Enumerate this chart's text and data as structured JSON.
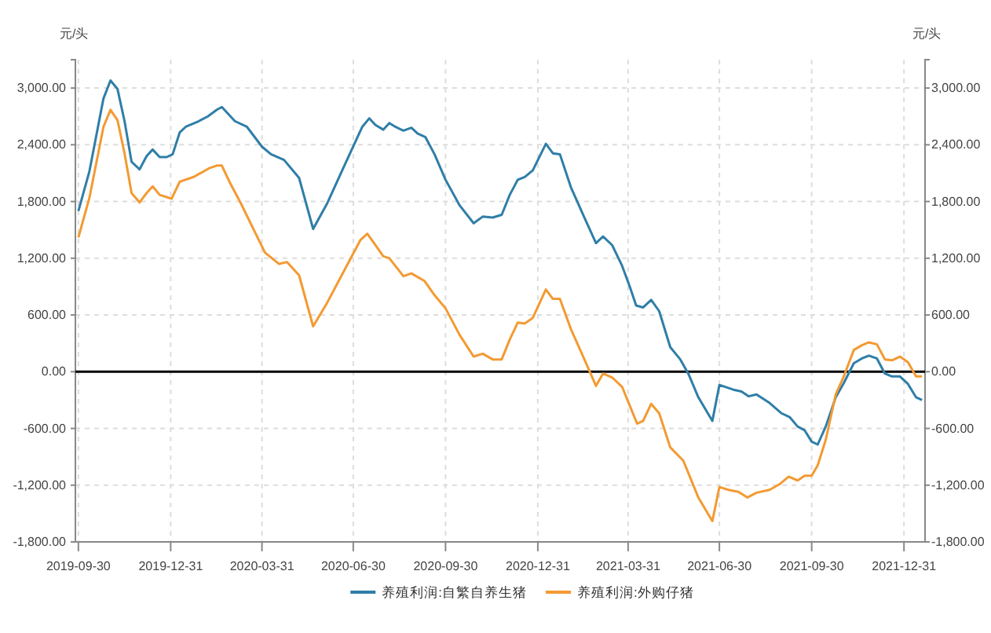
{
  "chart_data": {
    "type": "line",
    "ylabel": "元/头",
    "y2label": "元/头",
    "xlim": [
      "2019-09-27",
      "2022-01-21"
    ],
    "xticks": [
      {
        "value": "2019-09-30",
        "label": "2019-09-30"
      },
      {
        "value": "2019-12-31",
        "label": "2019-12-31"
      },
      {
        "value": "2020-03-31",
        "label": "2020-03-31"
      },
      {
        "value": "2020-06-30",
        "label": "2020-06-30"
      },
      {
        "value": "2020-09-30",
        "label": "2020-09-30"
      },
      {
        "value": "2020-12-31",
        "label": "2020-12-31"
      },
      {
        "value": "2021-03-31",
        "label": "2021-03-31"
      },
      {
        "value": "2021-06-30",
        "label": "2021-06-30"
      },
      {
        "value": "2021-09-30",
        "label": "2021-09-30"
      },
      {
        "value": "2021-12-31",
        "label": "2021-12-31"
      }
    ],
    "ylim": [
      -1800,
      3300
    ],
    "yticks": [
      {
        "value": -1800,
        "label": "-1,800.00"
      },
      {
        "value": -1200,
        "label": "-1,200.00"
      },
      {
        "value": -600,
        "label": "-600.00"
      },
      {
        "value": 0,
        "label": "0.00"
      },
      {
        "value": 600,
        "label": "600.00"
      },
      {
        "value": 1200,
        "label": "1,200.00"
      },
      {
        "value": 1800,
        "label": "1,800.00"
      },
      {
        "value": 2400,
        "label": "2,400.00"
      },
      {
        "value": 3000,
        "label": "3,000.00"
      }
    ],
    "y2lim": [
      -1800,
      3300
    ],
    "y2ticks": [
      {
        "value": -1800,
        "label": "-1,800.00"
      },
      {
        "value": -1200,
        "label": "-1,200.00"
      },
      {
        "value": -600,
        "label": "-600.00"
      },
      {
        "value": 0,
        "label": "0.00"
      },
      {
        "value": 600,
        "label": "600.00"
      },
      {
        "value": 1200,
        "label": "1,200.00"
      },
      {
        "value": 1800,
        "label": "1,800.00"
      },
      {
        "value": 2400,
        "label": "2,400.00"
      },
      {
        "value": 3000,
        "label": "3,000.00"
      }
    ],
    "grid": true,
    "legend": "bottom",
    "marker": "none",
    "line_style": "solid",
    "ref_lines": [
      {
        "axis": "y",
        "value": 0,
        "color": "#000000"
      }
    ],
    "series": [
      {
        "name": "养殖利润:自繁自养生猪",
        "color": "#2f7ea8",
        "x": [
          "2019-09-30",
          "2019-10-11",
          "2019-10-25",
          "2019-11-01",
          "2019-11-08",
          "2019-11-15",
          "2019-11-22",
          "2019-11-30",
          "2019-12-07",
          "2019-12-13",
          "2019-12-20",
          "2019-12-27",
          "2020-01-02",
          "2020-01-09",
          "2020-01-15",
          "2020-01-28",
          "2020-02-06",
          "2020-02-15",
          "2020-02-20",
          "2020-03-04",
          "2020-03-16",
          "2020-03-31",
          "2020-04-09",
          "2020-04-22",
          "2020-05-07",
          "2020-05-21",
          "2020-06-04",
          "2020-06-19",
          "2020-07-09",
          "2020-07-16",
          "2020-07-22",
          "2020-07-30",
          "2020-08-05",
          "2020-08-11",
          "2020-08-19",
          "2020-08-27",
          "2020-09-02",
          "2020-09-10",
          "2020-09-19",
          "2020-09-30",
          "2020-10-14",
          "2020-10-28",
          "2020-11-06",
          "2020-11-16",
          "2020-11-25",
          "2020-12-03",
          "2020-12-11",
          "2020-12-18",
          "2020-12-26",
          "2021-01-08",
          "2021-01-15",
          "2021-01-22",
          "2021-02-02",
          "2021-02-15",
          "2021-02-27",
          "2021-03-06",
          "2021-03-15",
          "2021-03-25",
          "2021-04-02",
          "2021-04-08",
          "2021-04-15",
          "2021-04-23",
          "2021-05-01",
          "2021-05-12",
          "2021-05-22",
          "2021-05-30",
          "2021-06-09",
          "2021-06-23",
          "2021-06-30",
          "2021-07-14",
          "2021-07-22",
          "2021-07-29",
          "2021-08-06",
          "2021-08-19",
          "2021-08-31",
          "2021-09-08",
          "2021-09-16",
          "2021-09-23",
          "2021-09-30",
          "2021-10-06",
          "2021-10-14",
          "2021-10-24",
          "2021-11-01",
          "2021-11-11",
          "2021-11-19",
          "2021-11-26",
          "2021-12-04",
          "2021-12-12",
          "2021-12-19",
          "2021-12-27",
          "2022-01-04",
          "2022-01-12",
          "2022-01-18"
        ],
        "values": [
          1700,
          2120,
          2890,
          3080,
          2990,
          2650,
          2220,
          2140,
          2280,
          2350,
          2270,
          2270,
          2300,
          2530,
          2590,
          2650,
          2700,
          2770,
          2800,
          2650,
          2590,
          2380,
          2300,
          2240,
          2050,
          1510,
          1780,
          2130,
          2590,
          2680,
          2610,
          2560,
          2630,
          2590,
          2550,
          2580,
          2520,
          2480,
          2300,
          2030,
          1760,
          1570,
          1640,
          1630,
          1660,
          1870,
          2030,
          2060,
          2130,
          2410,
          2310,
          2300,
          1950,
          1640,
          1360,
          1430,
          1340,
          1120,
          890,
          700,
          680,
          760,
          640,
          260,
          130,
          -20,
          -270,
          -520,
          -140,
          -190,
          -210,
          -260,
          -240,
          -330,
          -440,
          -480,
          -580,
          -620,
          -740,
          -770,
          -580,
          -270,
          -120,
          90,
          140,
          170,
          140,
          -20,
          -50,
          -50,
          -130,
          -270,
          -300
        ]
      },
      {
        "name": "养殖利润:外购仔猪",
        "color": "#f39a32",
        "x": [
          "2019-09-30",
          "2019-10-11",
          "2019-10-25",
          "2019-11-01",
          "2019-11-08",
          "2019-11-15",
          "2019-11-22",
          "2019-11-30",
          "2019-12-07",
          "2019-12-13",
          "2019-12-20",
          "2020-01-01",
          "2020-01-09",
          "2020-01-23",
          "2020-02-07",
          "2020-02-15",
          "2020-02-20",
          "2020-02-28",
          "2020-03-10",
          "2020-03-22",
          "2020-04-03",
          "2020-04-17",
          "2020-04-25",
          "2020-05-07",
          "2020-05-21",
          "2020-06-04",
          "2020-06-19",
          "2020-07-07",
          "2020-07-14",
          "2020-07-22",
          "2020-07-30",
          "2020-08-05",
          "2020-08-19",
          "2020-08-27",
          "2020-09-09",
          "2020-09-19",
          "2020-09-30",
          "2020-10-14",
          "2020-10-28",
          "2020-11-06",
          "2020-11-16",
          "2020-11-25",
          "2020-12-03",
          "2020-12-11",
          "2020-12-18",
          "2020-12-26",
          "2021-01-08",
          "2021-01-15",
          "2021-01-22",
          "2021-02-02",
          "2021-02-15",
          "2021-02-27",
          "2021-03-06",
          "2021-03-15",
          "2021-03-25",
          "2021-04-09",
          "2021-04-15",
          "2021-04-23",
          "2021-05-01",
          "2021-05-12",
          "2021-05-25",
          "2021-06-09",
          "2021-06-23",
          "2021-06-30",
          "2021-07-09",
          "2021-07-19",
          "2021-07-28",
          "2021-08-06",
          "2021-08-19",
          "2021-08-29",
          "2021-09-07",
          "2021-09-16",
          "2021-09-23",
          "2021-09-30",
          "2021-10-06",
          "2021-10-14",
          "2021-10-24",
          "2021-11-01",
          "2021-11-11",
          "2021-11-19",
          "2021-11-26",
          "2021-12-04",
          "2021-12-12",
          "2021-12-19",
          "2021-12-27",
          "2022-01-04",
          "2022-01-12",
          "2022-01-18"
        ],
        "values": [
          1420,
          1840,
          2590,
          2770,
          2660,
          2310,
          1890,
          1790,
          1890,
          1960,
          1870,
          1830,
          2010,
          2060,
          2150,
          2180,
          2180,
          2000,
          1780,
          1520,
          1260,
          1140,
          1160,
          1020,
          480,
          730,
          1030,
          1390,
          1460,
          1340,
          1220,
          1200,
          1010,
          1040,
          960,
          810,
          670,
          390,
          160,
          190,
          130,
          130,
          340,
          520,
          510,
          570,
          870,
          770,
          770,
          450,
          140,
          -150,
          -20,
          -60,
          -160,
          -550,
          -520,
          -340,
          -440,
          -800,
          -940,
          -1330,
          -1580,
          -1220,
          -1250,
          -1270,
          -1330,
          -1280,
          -1250,
          -1190,
          -1110,
          -1150,
          -1100,
          -1100,
          -990,
          -720,
          -240,
          -50,
          230,
          280,
          310,
          290,
          130,
          120,
          160,
          100,
          -50,
          -50
        ]
      }
    ]
  }
}
